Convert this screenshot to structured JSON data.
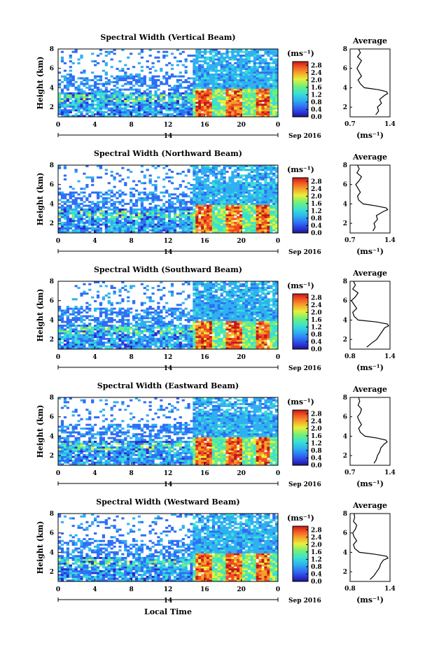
{
  "figure": {
    "xlabel": "Local Time",
    "date_label": "Sep 2016",
    "day_label": "14",
    "unit_label": "(ms⁻¹)",
    "avg_title": "Average",
    "avg_xlabel": "(ms⁻¹)",
    "ylabel": "Height (km)"
  },
  "chart_data": [
    {
      "type": "heatmap",
      "title": "Spectral Width (Vertical Beam)",
      "xlabel": "Local Time",
      "ylabel": "Height (km)",
      "x_ticks": [
        "0",
        "4",
        "8",
        "12",
        "16",
        "20",
        "0"
      ],
      "x_range_hours": [
        0,
        24
      ],
      "y_ticks": [
        "2",
        "4",
        "6",
        "8"
      ],
      "ylim": [
        1,
        8
      ],
      "colorbar": {
        "label": "(ms⁻¹)",
        "ticks": [
          "0.0",
          "0.4",
          "0.8",
          "1.2",
          "1.6",
          "2.0",
          "2.4",
          "2.8"
        ],
        "range": [
          0,
          3.0
        ]
      },
      "average_profile": {
        "title": "Average",
        "xlabel": "(ms⁻¹)",
        "x_ticks": [
          "0.7",
          "1.4"
        ],
        "xlim": [
          0.7,
          1.4
        ],
        "height_km": [
          1.2,
          1.6,
          2.0,
          2.4,
          2.8,
          3.2,
          3.4,
          3.6,
          3.8,
          4.0,
          4.4,
          4.8,
          5.2,
          5.6,
          6.0,
          6.4,
          6.8,
          7.2,
          7.6,
          8.0
        ],
        "width": [
          1.15,
          1.2,
          1.18,
          1.25,
          1.22,
          1.3,
          1.36,
          1.34,
          1.2,
          0.95,
          0.88,
          0.84,
          0.9,
          0.86,
          0.82,
          0.86,
          0.9,
          0.83,
          0.88,
          0.85
        ]
      }
    },
    {
      "type": "heatmap",
      "title": "Spectral Width (Northward Beam)",
      "xlabel": "Local Time",
      "ylabel": "Height (km)",
      "x_ticks": [
        "0",
        "4",
        "8",
        "12",
        "16",
        "20",
        "0"
      ],
      "x_range_hours": [
        0,
        24
      ],
      "y_ticks": [
        "2",
        "4",
        "6",
        "8"
      ],
      "ylim": [
        1,
        8
      ],
      "colorbar": {
        "label": "(ms⁻¹)",
        "ticks": [
          "0.0",
          "0.4",
          "0.8",
          "1.2",
          "1.6",
          "2.0",
          "2.4",
          "2.8"
        ],
        "range": [
          0,
          3.0
        ]
      },
      "average_profile": {
        "title": "Average",
        "xlabel": "(ms⁻¹)",
        "x_ticks": [
          "0.7",
          "1.4"
        ],
        "xlim": [
          0.7,
          1.4
        ],
        "height_km": [
          1.2,
          1.6,
          2.0,
          2.4,
          2.8,
          3.2,
          3.4,
          3.6,
          3.8,
          4.0,
          4.4,
          4.8,
          5.2,
          5.6,
          6.0,
          6.4,
          6.8,
          7.2,
          7.6,
          8.0
        ],
        "width": [
          1.1,
          1.14,
          1.12,
          1.18,
          1.16,
          1.28,
          1.36,
          1.33,
          1.15,
          0.93,
          0.85,
          0.83,
          0.88,
          0.84,
          0.8,
          0.86,
          0.9,
          0.82,
          0.86,
          0.83
        ]
      }
    },
    {
      "type": "heatmap",
      "title": "Spectral Width (Southward Beam)",
      "xlabel": "Local Time",
      "ylabel": "Height (km)",
      "x_ticks": [
        "0",
        "4",
        "8",
        "12",
        "16",
        "20",
        "0"
      ],
      "x_range_hours": [
        0,
        24
      ],
      "y_ticks": [
        "2",
        "4",
        "6",
        "8"
      ],
      "ylim": [
        1,
        8
      ],
      "colorbar": {
        "label": "(ms⁻¹)",
        "ticks": [
          "0.0",
          "0.4",
          "0.8",
          "1.2",
          "1.6",
          "2.0",
          "2.4",
          "2.8"
        ],
        "range": [
          0,
          3.0
        ]
      },
      "average_profile": {
        "title": "Average",
        "xlabel": "(ms⁻¹)",
        "x_ticks": [
          "0.8",
          "1.4"
        ],
        "xlim": [
          0.8,
          1.4
        ],
        "height_km": [
          1.2,
          1.6,
          2.0,
          2.4,
          2.8,
          3.2,
          3.4,
          3.6,
          3.8,
          4.0,
          4.4,
          4.8,
          5.2,
          5.6,
          6.0,
          6.4,
          6.8,
          7.2,
          7.6,
          8.0
        ],
        "width": [
          1.05,
          1.12,
          1.2,
          1.24,
          1.28,
          1.32,
          1.38,
          1.36,
          1.2,
          0.92,
          0.86,
          0.84,
          0.9,
          0.86,
          0.82,
          0.88,
          0.92,
          0.84,
          0.88,
          0.85
        ]
      }
    },
    {
      "type": "heatmap",
      "title": "Spectral Width (Eastward Beam)",
      "xlabel": "Local Time",
      "ylabel": "Height (km)",
      "x_ticks": [
        "0",
        "4",
        "8",
        "12",
        "16",
        "20",
        "0"
      ],
      "x_range_hours": [
        0,
        24
      ],
      "y_ticks": [
        "2",
        "4",
        "6",
        "8"
      ],
      "ylim": [
        1,
        8
      ],
      "colorbar": {
        "label": "(ms⁻¹)",
        "ticks": [
          "0.0",
          "0.4",
          "0.8",
          "1.2",
          "1.6",
          "2.0",
          "2.4",
          "2.8"
        ],
        "range": [
          0,
          3.0
        ]
      },
      "average_profile": {
        "title": "Average",
        "xlabel": "(ms⁻¹)",
        "x_ticks": [
          "0.7",
          "1.4"
        ],
        "xlim": [
          0.7,
          1.4
        ],
        "height_km": [
          1.2,
          1.6,
          2.0,
          2.4,
          2.8,
          3.2,
          3.4,
          3.6,
          3.8,
          4.0,
          4.4,
          4.8,
          5.2,
          5.6,
          6.0,
          6.4,
          6.8,
          7.2,
          7.6,
          8.0
        ],
        "width": [
          1.12,
          1.16,
          1.18,
          1.22,
          1.24,
          1.3,
          1.35,
          1.33,
          1.18,
          0.96,
          0.88,
          0.85,
          0.9,
          0.86,
          0.83,
          0.88,
          0.9,
          0.84,
          0.87,
          0.85
        ]
      }
    },
    {
      "type": "heatmap",
      "title": "Spectral Width (Westward Beam)",
      "xlabel": "Local Time",
      "ylabel": "Height (km)",
      "x_ticks": [
        "0",
        "4",
        "8",
        "12",
        "16",
        "20",
        "0"
      ],
      "x_range_hours": [
        0,
        24
      ],
      "y_ticks": [
        "2",
        "4",
        "6",
        "8"
      ],
      "ylim": [
        1,
        8
      ],
      "colorbar": {
        "label": "(ms⁻¹)",
        "ticks": [
          "0.0",
          "0.4",
          "0.8",
          "1.2",
          "1.6",
          "2.0",
          "2.4",
          "2.8"
        ],
        "range": [
          0,
          3.0
        ]
      },
      "average_profile": {
        "title": "Average",
        "xlabel": "(ms⁻¹)",
        "x_ticks": [
          "0.8",
          "1.4"
        ],
        "xlim": [
          0.8,
          1.4
        ],
        "height_km": [
          1.2,
          1.6,
          2.0,
          2.4,
          2.8,
          3.2,
          3.4,
          3.6,
          3.8,
          4.0,
          4.4,
          4.8,
          5.2,
          5.6,
          6.0,
          6.4,
          6.8,
          7.2,
          7.6,
          8.0
        ],
        "width": [
          1.1,
          1.16,
          1.2,
          1.24,
          1.26,
          1.3,
          1.37,
          1.35,
          1.18,
          0.94,
          0.87,
          0.85,
          0.9,
          0.86,
          0.84,
          0.88,
          0.9,
          0.85,
          0.87,
          0.86
        ]
      }
    }
  ]
}
